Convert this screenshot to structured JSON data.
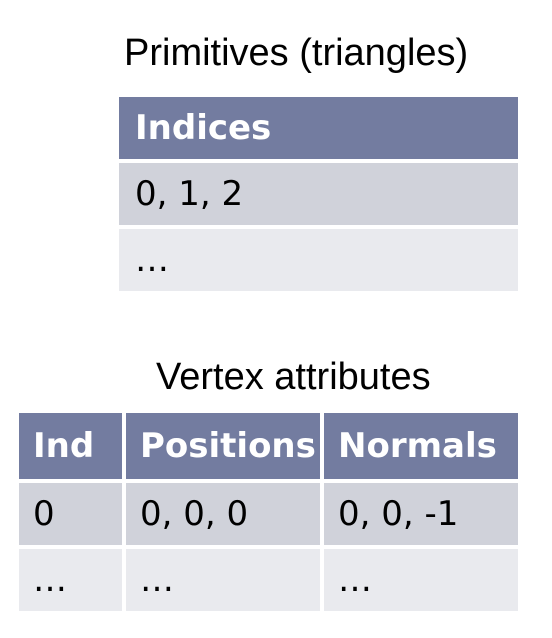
{
  "primitives": {
    "title": "Primitives (triangles)",
    "header": "Indices",
    "rows": [
      "0, 1, 2",
      "…"
    ]
  },
  "vertex_attributes": {
    "title": "Vertex attributes",
    "headers": [
      "Ind",
      "Positions",
      "Normals"
    ],
    "rows": [
      [
        "0",
        "0, 0, 0",
        "0, 0, -1"
      ],
      [
        "…",
        "…",
        "…"
      ]
    ]
  },
  "colors": {
    "header_bg": "#737ca0",
    "row_odd_bg": "#d0d2da",
    "row_even_bg": "#e9eaee"
  }
}
